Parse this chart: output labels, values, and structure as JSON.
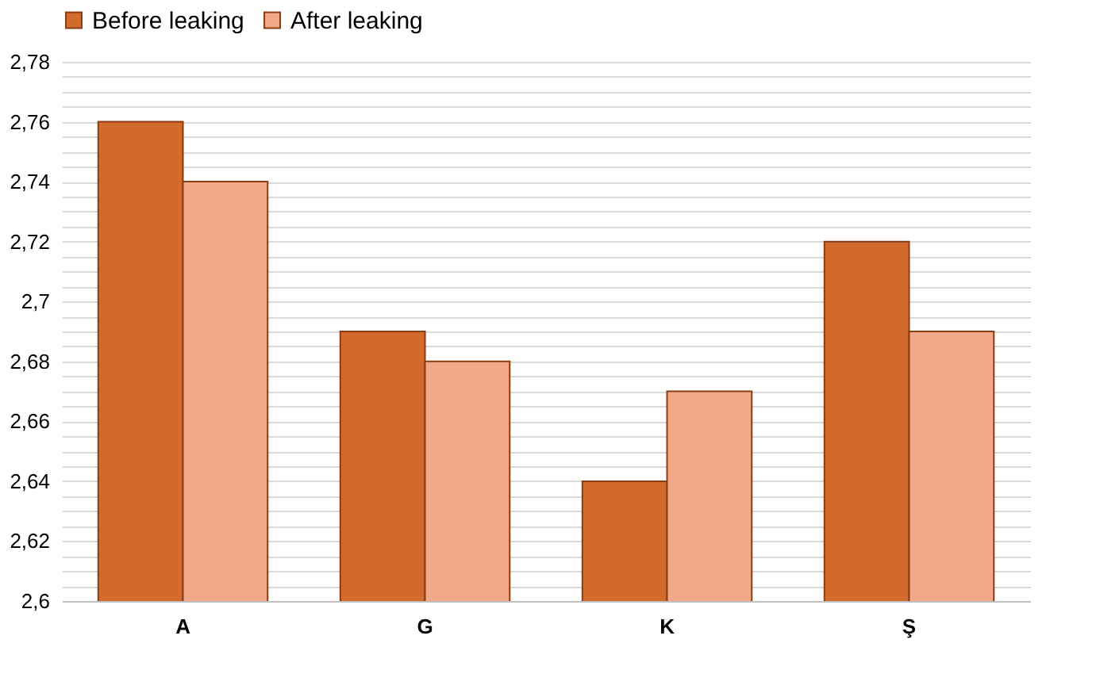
{
  "chart_data": {
    "type": "bar",
    "categories": [
      "A",
      "G",
      "K",
      "Ş"
    ],
    "series": [
      {
        "name": "Before leaking",
        "color": "#d26b2c",
        "values": [
          2.76,
          2.69,
          2.64,
          2.72
        ]
      },
      {
        "name": "After leaking",
        "color": "#f2a98a",
        "values": [
          2.74,
          2.68,
          2.67,
          2.69
        ]
      }
    ],
    "ylim": [
      2.6,
      2.78
    ],
    "yticks": [
      {
        "value": 2.6,
        "label": "2,6"
      },
      {
        "value": 2.605,
        "label": null
      },
      {
        "value": 2.61,
        "label": null
      },
      {
        "value": 2.615,
        "label": null
      },
      {
        "value": 2.62,
        "label": "2,62"
      },
      {
        "value": 2.625,
        "label": null
      },
      {
        "value": 2.63,
        "label": null
      },
      {
        "value": 2.635,
        "label": null
      },
      {
        "value": 2.64,
        "label": "2,64"
      },
      {
        "value": 2.645,
        "label": null
      },
      {
        "value": 2.65,
        "label": null
      },
      {
        "value": 2.655,
        "label": null
      },
      {
        "value": 2.66,
        "label": "2,66"
      },
      {
        "value": 2.665,
        "label": null
      },
      {
        "value": 2.67,
        "label": null
      },
      {
        "value": 2.675,
        "label": null
      },
      {
        "value": 2.68,
        "label": "2,68"
      },
      {
        "value": 2.685,
        "label": null
      },
      {
        "value": 2.69,
        "label": null
      },
      {
        "value": 2.695,
        "label": null
      },
      {
        "value": 2.7,
        "label": "2,7"
      },
      {
        "value": 2.705,
        "label": null
      },
      {
        "value": 2.71,
        "label": null
      },
      {
        "value": 2.715,
        "label": null
      },
      {
        "value": 2.72,
        "label": "2,72"
      },
      {
        "value": 2.725,
        "label": null
      },
      {
        "value": 2.73,
        "label": null
      },
      {
        "value": 2.735,
        "label": null
      },
      {
        "value": 2.74,
        "label": "2,74"
      },
      {
        "value": 2.745,
        "label": null
      },
      {
        "value": 2.75,
        "label": null
      },
      {
        "value": 2.755,
        "label": null
      },
      {
        "value": 2.76,
        "label": "2,76"
      },
      {
        "value": 2.765,
        "label": null
      },
      {
        "value": 2.77,
        "label": null
      },
      {
        "value": 2.775,
        "label": null
      },
      {
        "value": 2.78,
        "label": "2,78"
      }
    ],
    "grid": "y",
    "legend": "top"
  }
}
